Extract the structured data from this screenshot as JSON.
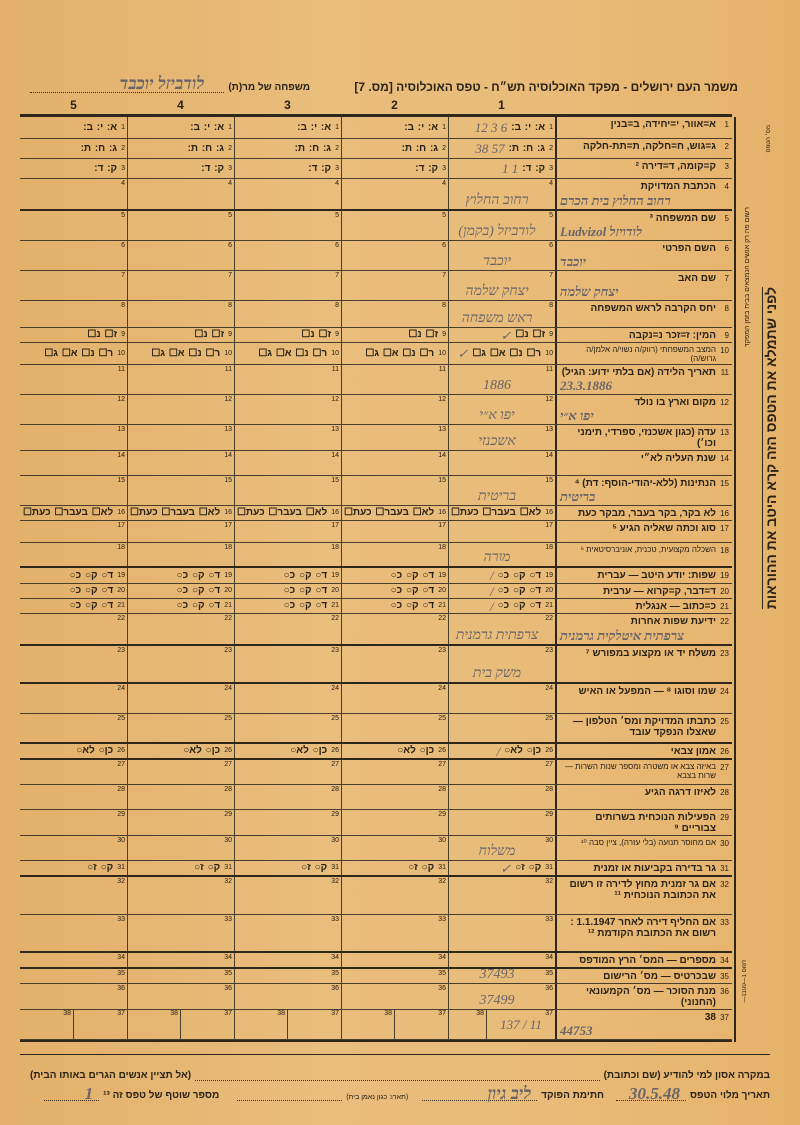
{
  "header": {
    "title": "משמר העם ירושלים - מפקד האוכלוסיה תש״ח - טפס האוכלוסיה [מס. 7]",
    "family_label": "משפחה של מר(ת)",
    "family_handwritten": "לודביזל יוכבד",
    "person_columns": [
      "1",
      "2",
      "3",
      "4",
      "5"
    ]
  },
  "rows": [
    {
      "n": "1",
      "label": "א=אוור, י=יחידה, ב=בנין",
      "opt": "א: י: ב:",
      "hw": "6   3   12"
    },
    {
      "n": "2",
      "label": "ג=גוש, ח=חלקה, ת=תת-חלקה",
      "opt": "ג: ח: ת:",
      "hw": "57   38"
    },
    {
      "n": "3",
      "label": "ק=קומה, ד=דירה ²",
      "opt": "ק: ד:",
      "hw": "1     1"
    },
    {
      "n": "4",
      "label": "הכתבת המדויקת",
      "hw": "רחוב החלוץ",
      "lhw": "רחוב החלוץ בית הכרם"
    },
    {
      "n": "5",
      "label": "שם המשפחה ³",
      "hw": "לודביזל (בקמן)",
      "lhw": "לודויזל Ludvizol"
    },
    {
      "n": "6",
      "label": "השם הפרטי",
      "hw": "יוכבד",
      "lhw": "יוכבד"
    },
    {
      "n": "7",
      "label": "שם האב",
      "hw": "יצחק שלמה",
      "lhw": "יצחק שלמה"
    },
    {
      "n": "8",
      "label": "יחס הקרבה לראש המשפחה",
      "hw": "ראש משפחה"
    },
    {
      "n": "9",
      "label": "המין: ז=זכר  נ=נקבה",
      "opt": "ז☐ נ☐",
      "hw": "✓"
    },
    {
      "n": "10",
      "label": "המצב המשפחתי (רווק/ה נשוי/ה אלמן/ה גרוש/ה)",
      "small": true,
      "opt": "ר☐ נ☐ א☐ ג☐",
      "hw": "✓"
    },
    {
      "n": "11",
      "label": "תאריך הלידה (אם בלתי ידוע: הגיל)",
      "hw": "1886",
      "lhw": "23.3.1886"
    },
    {
      "n": "12",
      "label": "מקום וארץ בו נולד",
      "hw": "יפו א״י",
      "lhw": "יפו א״י"
    },
    {
      "n": "13",
      "label": "עדה (כגון אשכנזי, ספרדי, תימני וכו׳)",
      "hw": "אשכנזי"
    },
    {
      "n": "14",
      "label": "שנת העליה לא״י"
    },
    {
      "n": "15",
      "label": "הנתינות (ללא-יהודי-הוסף: דת) ⁴",
      "hw": "בריטית",
      "lhw": "בריטית"
    },
    {
      "n": "16",
      "label": "לא בקר, בקר בעבר, מבקר כעת",
      "opt": "לא☐ בעבר☐ כעת☐"
    },
    {
      "n": "17",
      "label": "סוג וכתה שאליה הגיע ⁵"
    },
    {
      "n": "18",
      "label": "השכלה מקצועית, טכנית, אוניברסיטאית ⁶",
      "small": true,
      "hw": "מורה"
    },
    {
      "n": "19",
      "label": "שפות: יודע היטב — עברית",
      "opt": "ד○ ק○ כ○",
      "hw": "/"
    },
    {
      "n": "20",
      "label": "ד=דבר, ק=קרוא — ערבית",
      "opt": "ד○ ק○ כ○",
      "hw": "/"
    },
    {
      "n": "21",
      "label": "כ=כתוב — אנגלית",
      "opt": "ד○ ק○ כ○",
      "hw": "/"
    },
    {
      "n": "22",
      "label": "ידיעת שפות אחרות",
      "hw": "צרפתית גרמנית",
      "lhw": "צרפתית איטלקית גרמנית"
    },
    {
      "n": "23",
      "label": "משלח יד או מקצוע במפורש ⁷",
      "hw": "משק בית"
    },
    {
      "n": "24",
      "label": "שמו וסוגו ⁸ — המפעל או האיש"
    },
    {
      "n": "25",
      "label": "כתבתו המדויקת ומס׳ הטלפון — שאצלו הנפקד עובד"
    },
    {
      "n": "26",
      "label": "אמון צבאי",
      "opt": "כן○ לא○",
      "hw": "/"
    },
    {
      "n": "27",
      "label": "באיזה צבא או משטרה ומספר שנות השרות — שרות בצבא",
      "small": true
    },
    {
      "n": "28",
      "label": "לאיזו דרגה הגיע"
    },
    {
      "n": "29",
      "label": "הפעילות הנוכחית בשרותים צבוריים ⁹"
    },
    {
      "n": "30",
      "label": "אם מחוסר תנועה (בלי עזרה), ציין סבה ¹⁰",
      "small": true,
      "hw": "משלוח"
    },
    {
      "n": "31",
      "label": "גר בדירה בקביעות או זמנית",
      "opt": "ק○ ז○",
      "hw": "✓"
    },
    {
      "n": "32",
      "label": "אם גר זמנית מחוץ לדירה זו רשום את הכתובת הנוכחית ¹¹"
    },
    {
      "n": "33",
      "label": "אם החליף דירה לאחר 1.1.1947 : רשום את הכתובת הקודמת ¹²"
    },
    {
      "n": "34",
      "label": "מספרים — המס׳ הרץ המודפס"
    },
    {
      "n": "35",
      "label": "שבכרטיס — מס׳ הרישום",
      "hw": "37493"
    },
    {
      "n": "36",
      "label": "מנת הסוכר — מס׳ הקמעונאי (החנוני)",
      "hw": "37499"
    },
    {
      "n": "37",
      "label": "38",
      "hw": "11 / 137",
      "lhw": "44753",
      "split": true
    }
  ],
  "margin": {
    "main_text": "לפני שתמלא את הטפס הזה קרא היטב את ההוראות",
    "side_text": "רשום פה רק אנשים הנמצאים בבית בזמן המפקד",
    "corner_text": "מס׳ הטפס",
    "print_text": "דפוס 1—1100—"
  },
  "footer": {
    "emergency_label": "במקרה אסון למי להודיע (שם וכתובת)",
    "emergency_note": "(אל תציין אנשים הגרים באותו הבית)",
    "date_label": "תאריך מלוי הטפס",
    "date_value": "30.5.48",
    "signature_label": "חתימת הפוקד",
    "signature_value": "ליב גיון",
    "role_note": "(תארו: כגון נאמן בית)",
    "serial_label": "מספר שוטף של טפס זה ¹³",
    "serial_value": "1"
  }
}
